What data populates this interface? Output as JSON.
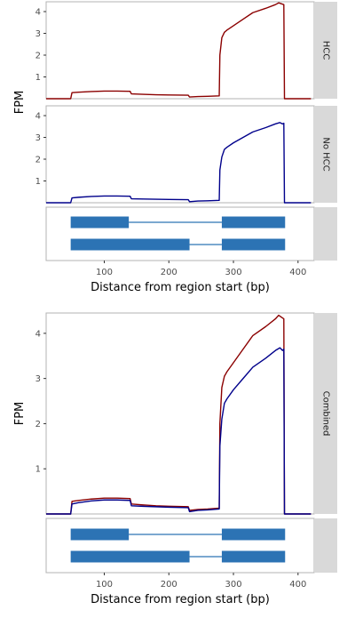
{
  "chart_data": [
    {
      "type": "line",
      "ylabel": "FPM",
      "xlabel": "Distance from region start (bp)",
      "xlim": [
        10,
        425
      ],
      "ylim": [
        0,
        4.45
      ],
      "x_ticks": [
        100,
        200,
        300,
        400
      ],
      "y_ticks": [
        1,
        2,
        3,
        4
      ],
      "panels": [
        {
          "label": "HCC",
          "series": [
            {
              "name": "HCC",
              "color": "#8b0000",
              "points": [
                [
                  10,
                  0
                ],
                [
                  48,
                  0
                ],
                [
                  50,
                  0.28
                ],
                [
                  60,
                  0.3
                ],
                [
                  80,
                  0.33
                ],
                [
                  100,
                  0.35
                ],
                [
                  120,
                  0.35
                ],
                [
                  140,
                  0.34
                ],
                [
                  142,
                  0.22
                ],
                [
                  160,
                  0.2
                ],
                [
                  180,
                  0.18
                ],
                [
                  200,
                  0.17
                ],
                [
                  230,
                  0.16
                ],
                [
                  232,
                  0.08
                ],
                [
                  245,
                  0.1
                ],
                [
                  260,
                  0.11
                ],
                [
                  278,
                  0.13
                ],
                [
                  279,
                  2.0
                ],
                [
                  282,
                  2.8
                ],
                [
                  286,
                  3.05
                ],
                [
                  290,
                  3.15
                ],
                [
                  300,
                  3.35
                ],
                [
                  315,
                  3.65
                ],
                [
                  330,
                  3.95
                ],
                [
                  350,
                  4.15
                ],
                [
                  365,
                  4.32
                ],
                [
                  370,
                  4.4
                ],
                [
                  378,
                  4.32
                ],
                [
                  379,
                  0
                ],
                [
                  420,
                  0
                ]
              ]
            }
          ]
        },
        {
          "label": "No HCC",
          "series": [
            {
              "name": "No HCC",
              "color": "#00008b",
              "points": [
                [
                  10,
                  0
                ],
                [
                  48,
                  0
                ],
                [
                  50,
                  0.22
                ],
                [
                  60,
                  0.25
                ],
                [
                  80,
                  0.29
                ],
                [
                  100,
                  0.31
                ],
                [
                  120,
                  0.31
                ],
                [
                  140,
                  0.3
                ],
                [
                  142,
                  0.18
                ],
                [
                  160,
                  0.17
                ],
                [
                  180,
                  0.16
                ],
                [
                  200,
                  0.15
                ],
                [
                  230,
                  0.14
                ],
                [
                  232,
                  0.05
                ],
                [
                  245,
                  0.08
                ],
                [
                  260,
                  0.09
                ],
                [
                  278,
                  0.11
                ],
                [
                  279,
                  1.5
                ],
                [
                  282,
                  2.1
                ],
                [
                  286,
                  2.45
                ],
                [
                  290,
                  2.55
                ],
                [
                  300,
                  2.75
                ],
                [
                  315,
                  3.0
                ],
                [
                  330,
                  3.25
                ],
                [
                  350,
                  3.45
                ],
                [
                  365,
                  3.62
                ],
                [
                  372,
                  3.68
                ],
                [
                  376,
                  3.62
                ],
                [
                  378,
                  3.65
                ],
                [
                  379,
                  0
                ],
                [
                  420,
                  0
                ]
              ]
            }
          ]
        }
      ],
      "gene_model": {
        "transcripts": [
          {
            "exons": [
              [
                48,
                138
              ],
              [
                282,
                380
              ]
            ]
          },
          {
            "exons": [
              [
                48,
                232
              ],
              [
                282,
                380
              ]
            ]
          }
        ],
        "exon_color": "#2c73b4"
      }
    },
    {
      "type": "line",
      "ylabel": "FPM",
      "xlabel": "Distance from region start (bp)",
      "xlim": [
        10,
        425
      ],
      "ylim": [
        0,
        4.45
      ],
      "x_ticks": [
        100,
        200,
        300,
        400
      ],
      "y_ticks": [
        1,
        2,
        3,
        4
      ],
      "panels": [
        {
          "label": "Combined",
          "series": [
            {
              "name": "HCC",
              "color": "#8b0000",
              "points": [
                [
                  10,
                  0
                ],
                [
                  48,
                  0
                ],
                [
                  50,
                  0.28
                ],
                [
                  60,
                  0.3
                ],
                [
                  80,
                  0.33
                ],
                [
                  100,
                  0.35
                ],
                [
                  120,
                  0.35
                ],
                [
                  140,
                  0.34
                ],
                [
                  142,
                  0.22
                ],
                [
                  160,
                  0.2
                ],
                [
                  180,
                  0.18
                ],
                [
                  200,
                  0.17
                ],
                [
                  230,
                  0.16
                ],
                [
                  232,
                  0.08
                ],
                [
                  245,
                  0.1
                ],
                [
                  260,
                  0.11
                ],
                [
                  278,
                  0.13
                ],
                [
                  279,
                  2.0
                ],
                [
                  282,
                  2.8
                ],
                [
                  286,
                  3.05
                ],
                [
                  290,
                  3.15
                ],
                [
                  300,
                  3.35
                ],
                [
                  315,
                  3.65
                ],
                [
                  330,
                  3.95
                ],
                [
                  350,
                  4.15
                ],
                [
                  365,
                  4.32
                ],
                [
                  370,
                  4.4
                ],
                [
                  378,
                  4.32
                ],
                [
                  379,
                  0
                ],
                [
                  420,
                  0
                ]
              ]
            },
            {
              "name": "No HCC",
              "color": "#00008b",
              "points": [
                [
                  10,
                  0
                ],
                [
                  48,
                  0
                ],
                [
                  50,
                  0.22
                ],
                [
                  60,
                  0.25
                ],
                [
                  80,
                  0.29
                ],
                [
                  100,
                  0.31
                ],
                [
                  120,
                  0.31
                ],
                [
                  140,
                  0.3
                ],
                [
                  142,
                  0.18
                ],
                [
                  160,
                  0.17
                ],
                [
                  180,
                  0.16
                ],
                [
                  200,
                  0.15
                ],
                [
                  230,
                  0.14
                ],
                [
                  232,
                  0.05
                ],
                [
                  245,
                  0.08
                ],
                [
                  260,
                  0.09
                ],
                [
                  278,
                  0.11
                ],
                [
                  279,
                  1.5
                ],
                [
                  282,
                  2.1
                ],
                [
                  286,
                  2.45
                ],
                [
                  290,
                  2.55
                ],
                [
                  300,
                  2.75
                ],
                [
                  315,
                  3.0
                ],
                [
                  330,
                  3.25
                ],
                [
                  350,
                  3.45
                ],
                [
                  365,
                  3.62
                ],
                [
                  372,
                  3.68
                ],
                [
                  376,
                  3.62
                ],
                [
                  378,
                  3.65
                ],
                [
                  379,
                  0
                ],
                [
                  420,
                  0
                ]
              ]
            }
          ]
        }
      ],
      "gene_model": {
        "transcripts": [
          {
            "exons": [
              [
                48,
                138
              ],
              [
                282,
                380
              ]
            ]
          },
          {
            "exons": [
              [
                48,
                232
              ],
              [
                282,
                380
              ]
            ]
          }
        ],
        "exon_color": "#2c73b4"
      }
    }
  ]
}
